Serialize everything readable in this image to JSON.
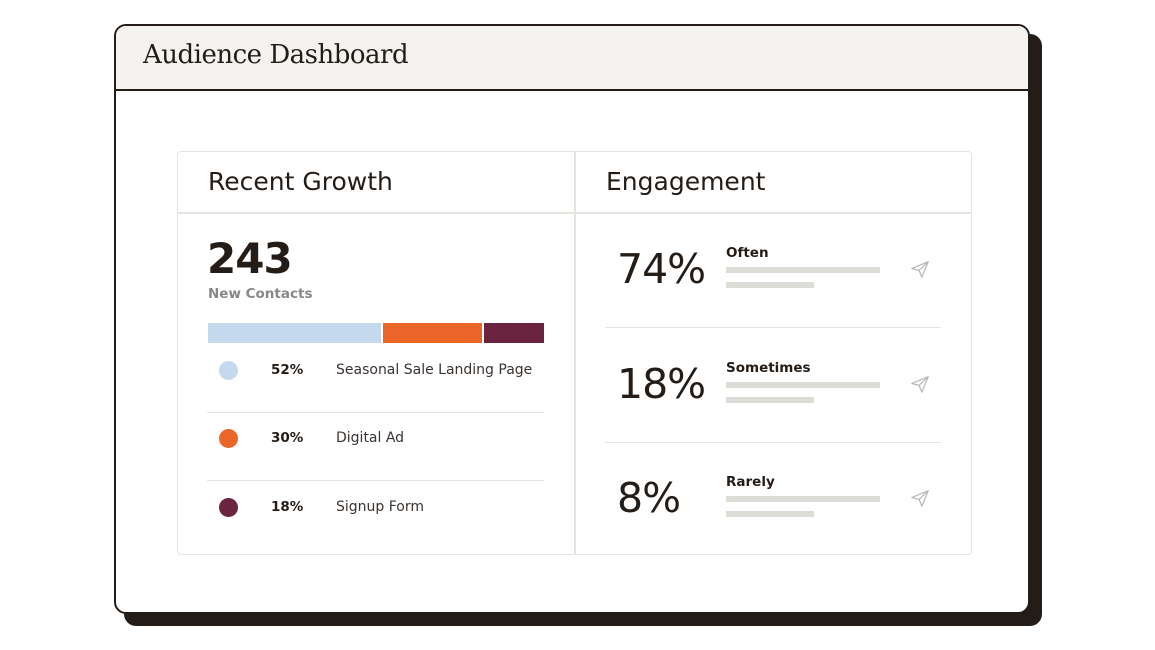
{
  "window": {
    "title": "Audience Dashboard"
  },
  "growth": {
    "title": "Recent Growth",
    "total": "243",
    "total_label": "New Contacts",
    "sources": [
      {
        "percent": "52%",
        "value": 52,
        "label": "Seasonal Sale Landing Page",
        "color": "#c4d8ee"
      },
      {
        "percent": "30%",
        "value": 30,
        "label": "Digital Ad",
        "color": "#ea6528"
      },
      {
        "percent": "18%",
        "value": 18,
        "label": "Signup Form",
        "color": "#6b2340"
      }
    ]
  },
  "engagement": {
    "title": "Engagement",
    "rows": [
      {
        "percent": "74%",
        "label": "Often",
        "icon": "send-icon"
      },
      {
        "percent": "18%",
        "label": "Sometimes",
        "icon": "send-icon"
      },
      {
        "percent": "8%",
        "label": "Rarely",
        "icon": "send-icon"
      }
    ]
  },
  "colors": {
    "ink": "#241c17",
    "header_bg": "#f4f3ef",
    "divider": "#e6e4df",
    "placeholder_bar": "#dedcd7",
    "muted_text": "#8a8886"
  }
}
